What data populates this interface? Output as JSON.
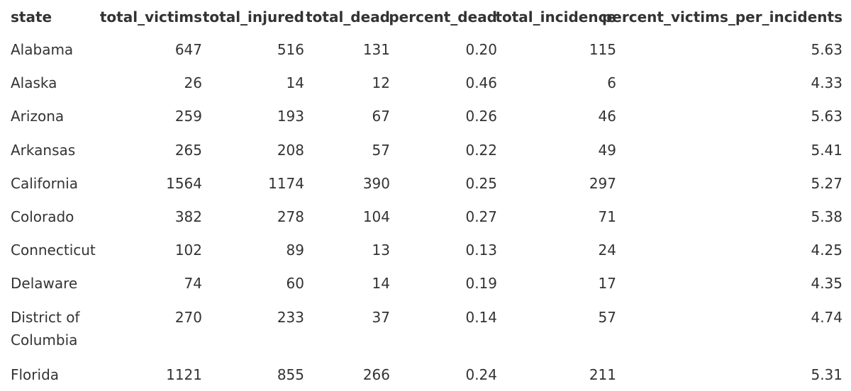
{
  "table": {
    "columns": [
      "state",
      "total_victims",
      "total_injured",
      "total_dead",
      "percent_dead",
      "total_incidence",
      "percent_victims_per_incidents"
    ],
    "rows": [
      [
        "Alabama",
        "647",
        "516",
        "131",
        "0.20",
        "115",
        "5.63"
      ],
      [
        "Alaska",
        "26",
        "14",
        "12",
        "0.46",
        "6",
        "4.33"
      ],
      [
        "Arizona",
        "259",
        "193",
        "67",
        "0.26",
        "46",
        "5.63"
      ],
      [
        "Arkansas",
        "265",
        "208",
        "57",
        "0.22",
        "49",
        "5.41"
      ],
      [
        "California",
        "1564",
        "1174",
        "390",
        "0.25",
        "297",
        "5.27"
      ],
      [
        "Colorado",
        "382",
        "278",
        "104",
        "0.27",
        "71",
        "5.38"
      ],
      [
        "Connecticut",
        "102",
        "89",
        "13",
        "0.13",
        "24",
        "4.25"
      ],
      [
        "Delaware",
        "74",
        "60",
        "14",
        "0.19",
        "17",
        "4.35"
      ],
      [
        "District of Columbia",
        "270",
        "233",
        "37",
        "0.14",
        "57",
        "4.74"
      ],
      [
        "Florida",
        "1121",
        "855",
        "266",
        "0.24",
        "211",
        "5.31"
      ]
    ],
    "state_line_breaks": {
      "District of Columbia": [
        "District of",
        "Columbia"
      ]
    }
  }
}
